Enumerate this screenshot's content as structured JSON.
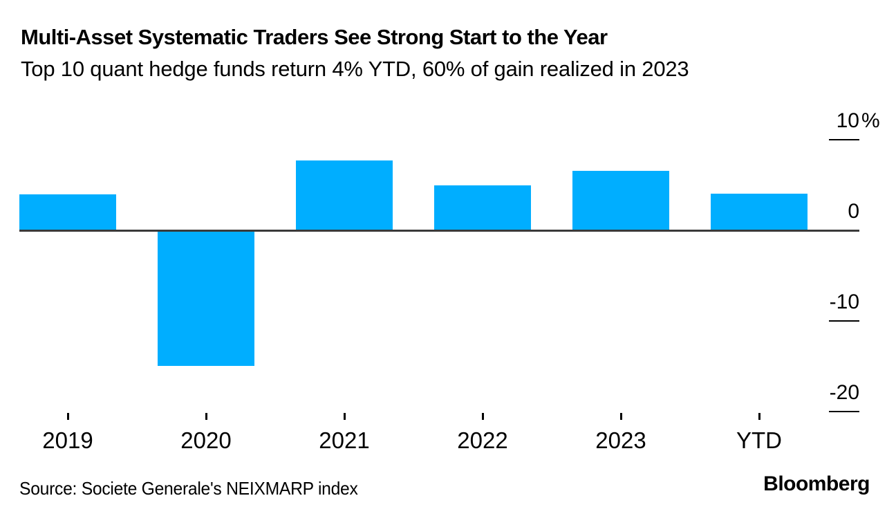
{
  "header": {
    "title": "Multi-Asset Systematic Traders See Strong Start to the Year",
    "subtitle": "Top 10 quant hedge funds return 4% YTD, 60% of gain realized in 2023"
  },
  "chart_data": {
    "type": "bar",
    "title": "Multi-Asset Systematic Traders See Strong Start to the Year",
    "subtitle": "Top 10 quant hedge funds return 4% YTD, 60% of gain realized in 2023",
    "categories": [
      "2019",
      "2020",
      "2021",
      "2022",
      "2023",
      "YTD"
    ],
    "values": [
      3.9,
      -14.8,
      7.6,
      4.9,
      6.5,
      4.0
    ],
    "unit": "%",
    "xlabel": "",
    "ylabel": "",
    "ylim": [
      -22,
      11
    ],
    "grid": false,
    "legend_position": "none",
    "yticks": [
      {
        "value": 10,
        "label": "10",
        "suffix": "%"
      },
      {
        "value": 0,
        "label": "0",
        "suffix": ""
      },
      {
        "value": -10,
        "label": "-10",
        "suffix": ""
      },
      {
        "value": -20,
        "label": "-20",
        "suffix": ""
      }
    ],
    "colors": {
      "bar": "#00AEFF",
      "baseline": "#3a3a3a",
      "tick": "#000000",
      "text": "#000000"
    }
  },
  "footer": {
    "source": "Source: Societe Generale's NEIXMARP index",
    "brand": "Bloomberg"
  }
}
